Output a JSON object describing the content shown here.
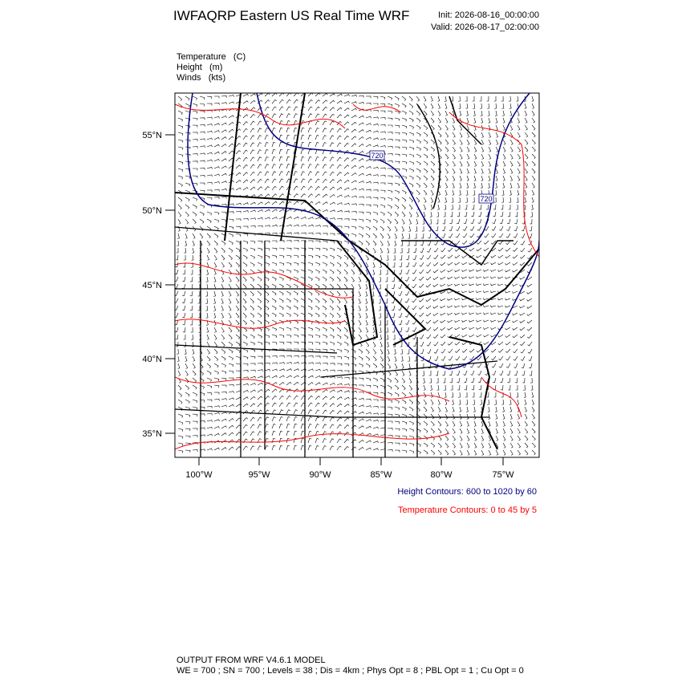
{
  "header": {
    "title": "IWFAQRP Eastern US Real Time WRF",
    "init": "Init: 2026-08-16_00:00:00",
    "valid": "Valid: 2026-08-17_02:00:00"
  },
  "fields": [
    "Temperature   (C)",
    "Height   (m)",
    "Winds   (kts)"
  ],
  "map": {
    "lat_labels": [
      "55°N",
      "50°N",
      "45°N",
      "40°N",
      "35°N"
    ],
    "lon_labels": [
      "100°W",
      "95°W",
      "90°W",
      "85°W",
      "80°W",
      "75°W"
    ],
    "contour_labels": [
      "720",
      "720"
    ]
  },
  "legend": {
    "height": "Height Contours: 600 to 1020 by 60",
    "temperature": "Temperature Contours: 0 to 45 by 5"
  },
  "footer": {
    "model": "OUTPUT FROM WRF V4.6.1 MODEL",
    "settings": "WE = 700 ; SN = 700 ; Levels = 38 ; Dis = 4km ; Phys Opt = 8 ; PBL Opt = 1 ; Cu Opt = 0"
  }
}
